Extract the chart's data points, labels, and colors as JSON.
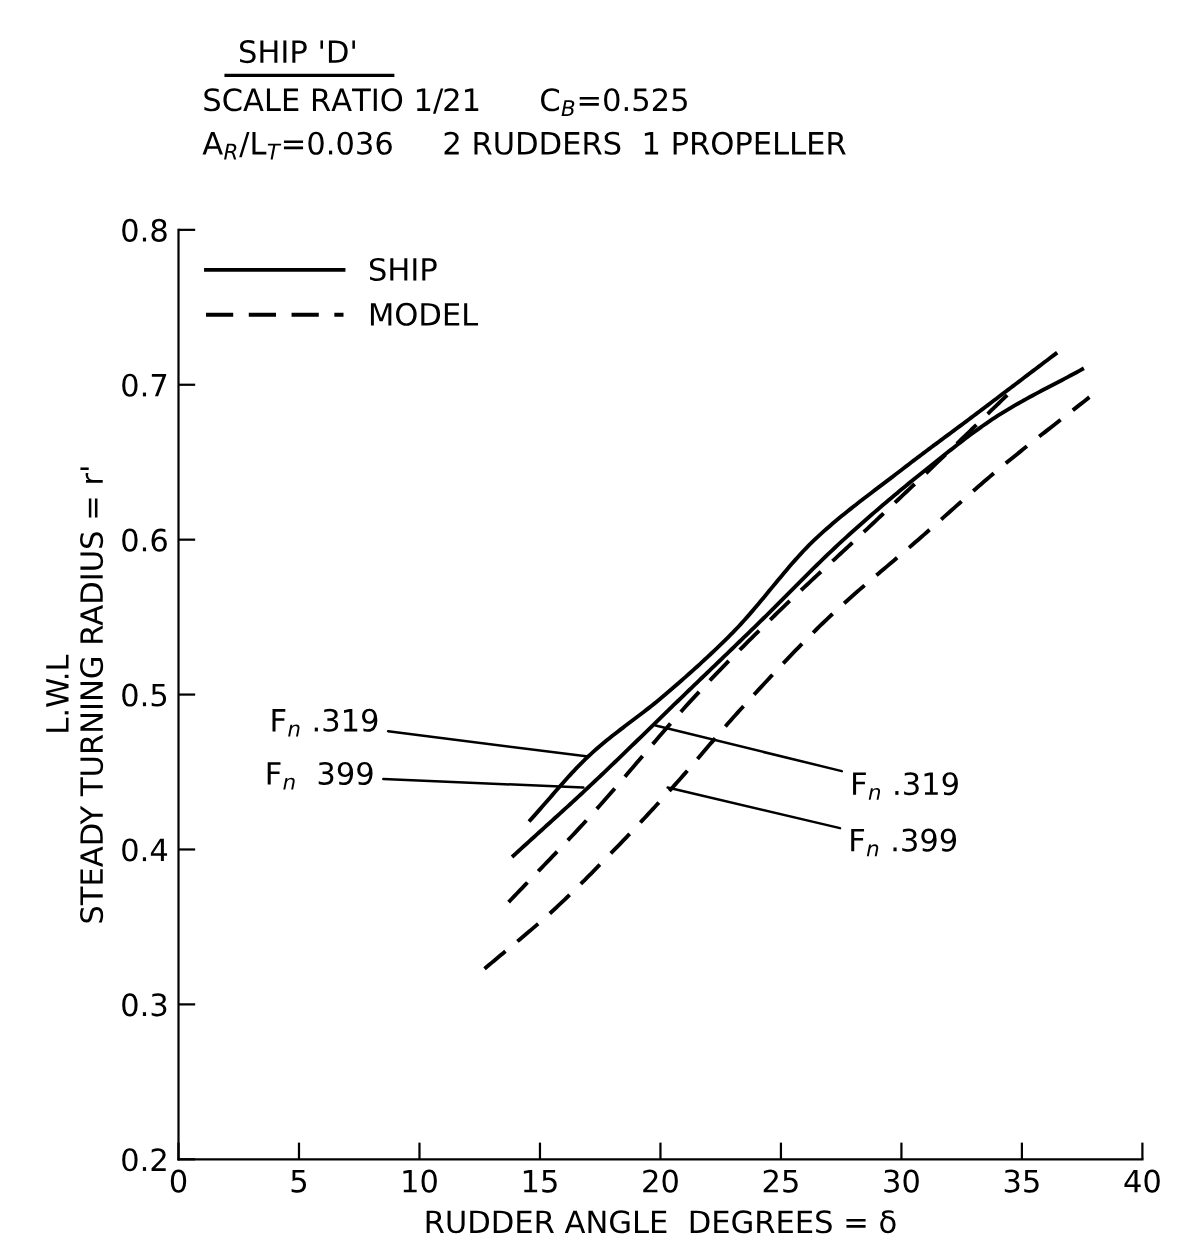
{
  "chart_data": {
    "type": "line",
    "title": "SHIP 'D'",
    "subtitle": "SCALE RATIO 1/21      C$_{B}$=0.525\nA$_{R}$/L$_{T}$=0.036     2 RUDDERS  1 PROPELLER",
    "xlabel": "RUDDER ANGLE  DEGREES = δ",
    "ylabel": "L.W.L\nSTEADY TURNING RADIUS = r'",
    "xlim": [
      0,
      40
    ],
    "ylim": [
      0.2,
      0.8
    ],
    "xticks": [
      0,
      5,
      10,
      15,
      20,
      25,
      30,
      35,
      40
    ],
    "yticks": [
      0.2,
      0.3,
      0.4,
      0.5,
      0.6,
      0.7,
      0.8
    ],
    "grid": false,
    "legend": "top left",
    "marker": "none",
    "series": [
      {
        "name": "SHIP",
        "color": "#000000",
        "line_style": "solid",
        "x": [
          14.6,
          17,
          20.2,
          23,
          26.4,
          30,
          33,
          36.4
        ],
        "values": [
          0.419,
          0.46,
          0.5,
          0.54,
          0.6,
          0.645,
          0.68,
          0.72
        ]
      },
      {
        "color": "#000000",
        "line_style": "solid",
        "x": [
          13.9,
          17,
          21,
          24,
          27.6,
          31,
          34,
          37.5
        ],
        "values": [
          0.396,
          0.44,
          0.5,
          0.545,
          0.6,
          0.645,
          0.68,
          0.71
        ]
      },
      {
        "name": "MODEL",
        "color": "#000000",
        "line_style": "dashed",
        "x": [
          13.7,
          17,
          21.5,
          25,
          28.1,
          31.5,
          34.7
        ],
        "values": [
          0.366,
          0.42,
          0.5,
          0.555,
          0.6,
          0.65,
          0.698
        ]
      },
      {
        "color": "#000000",
        "line_style": "dashed",
        "x": [
          12.7,
          15.5,
          18.1,
          20.5,
          23.3,
          27,
          30.7,
          34,
          37.8
        ],
        "values": [
          0.323,
          0.36,
          0.4,
          0.44,
          0.49,
          0.55,
          0.6,
          0.645,
          0.692
        ]
      }
    ],
    "annotations": [
      {
        "text": "F$_{n}$ .319",
        "x": 17,
        "y": 0.46
      },
      {
        "text": "F$_{n}$  399",
        "x": 16.8,
        "y": 0.44
      },
      {
        "text": "F$_{n}$ .319",
        "x": 19.8,
        "y": 0.48
      },
      {
        "text": "F$_{n}$ .399",
        "x": 20.3,
        "y": 0.44
      }
    ]
  }
}
